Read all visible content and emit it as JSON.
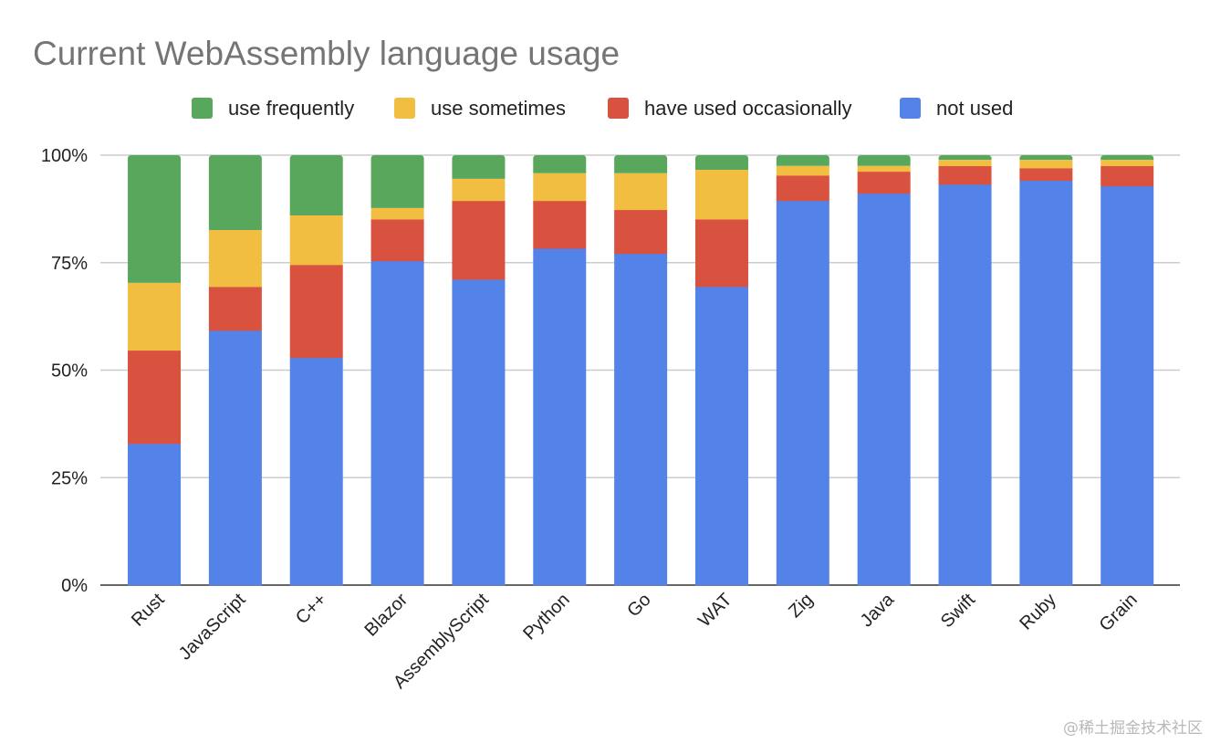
{
  "chart_data": {
    "type": "bar",
    "stacked": "percent",
    "title": "Current WebAssembly language usage",
    "xlabel": "",
    "ylabel": "",
    "ylim": [
      0,
      100
    ],
    "yticks": [
      "0%",
      "25%",
      "50%",
      "75%",
      "100%"
    ],
    "grid": true,
    "legend_position": "top",
    "categories": [
      "Rust",
      "JavaScript",
      "C++",
      "Blazor",
      "AssemblyScript",
      "Python",
      "Go",
      "WAT",
      "Zig",
      "Java",
      "Swift",
      "Ruby",
      "Grain"
    ],
    "series": [
      {
        "name": "not used",
        "color": "#5383E8",
        "values": [
          32.9,
          59.2,
          52.9,
          75.4,
          71.1,
          78.3,
          77.1,
          69.4,
          89.4,
          91.1,
          93.2,
          94.1,
          92.8
        ]
      },
      {
        "name": "have used occasionally",
        "color": "#D9513F",
        "values": [
          21.7,
          10.2,
          21.6,
          9.7,
          18.3,
          11.1,
          10.2,
          15.7,
          5.9,
          5.1,
          4.3,
          2.9,
          4.7
        ]
      },
      {
        "name": "use sometimes",
        "color": "#F1BE42",
        "values": [
          15.7,
          13.2,
          11.5,
          2.6,
          5.1,
          6.4,
          8.5,
          11.5,
          2.2,
          1.3,
          1.4,
          1.9,
          1.4
        ]
      },
      {
        "name": "use frequently",
        "color": "#58A75D",
        "values": [
          29.7,
          17.4,
          14.0,
          12.3,
          5.5,
          4.2,
          4.2,
          3.4,
          2.5,
          2.5,
          1.1,
          1.1,
          1.1
        ]
      }
    ],
    "legend_order": [
      "use frequently",
      "use sometimes",
      "have used occasionally",
      "not used"
    ]
  },
  "watermark": "@稀土掘金技术社区"
}
